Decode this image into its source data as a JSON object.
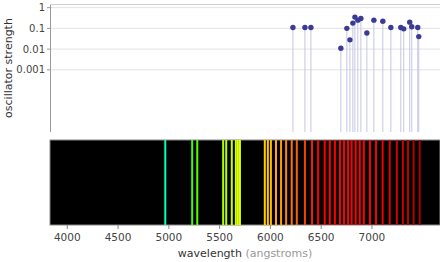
{
  "chart_data": [
    {
      "type": "stem",
      "y_label": "oscillator strength",
      "x": [
        6222,
        6340,
        6399,
        6694,
        6753,
        6783,
        6812,
        6832,
        6861,
        6891,
        6950,
        7019,
        7107,
        7186,
        7284,
        7313,
        7372,
        7392,
        7451,
        7461
      ],
      "values": [
        0.11,
        0.11,
        0.11,
        0.011,
        0.1,
        0.028,
        0.18,
        0.35,
        0.25,
        0.3,
        0.06,
        0.25,
        0.22,
        0.11,
        0.11,
        0.095,
        0.2,
        0.12,
        0.11,
        0.04
      ],
      "xlim": [
        3830,
        7670
      ],
      "ylim": [
        1e-06,
        1.5
      ],
      "yticks": [
        0.001,
        0.01,
        0.1,
        1
      ],
      "log": "y",
      "grid": true,
      "tick_labels": "y",
      "color": "#3b3b96"
    },
    {
      "type": "spectrum",
      "x_label": "wavelength (angstroms)",
      "x": [
        4965,
        5230,
        5280,
        5535,
        5565,
        5620,
        5660,
        5680,
        5700,
        5945,
        5975,
        6005,
        6055,
        6105,
        6155,
        6210,
        6260,
        6340,
        6410,
        6470,
        6535,
        6585,
        6635,
        6685,
        6725,
        6765,
        6800,
        6840,
        6880,
        6920,
        6980,
        7040,
        7105,
        7175,
        7245,
        7305,
        7355,
        7410,
        7470
      ],
      "xlim": [
        3830,
        7670
      ],
      "xticks": [
        4000,
        4500,
        5000,
        5500,
        6000,
        6500,
        7000
      ],
      "tick_labels": "x"
    }
  ]
}
